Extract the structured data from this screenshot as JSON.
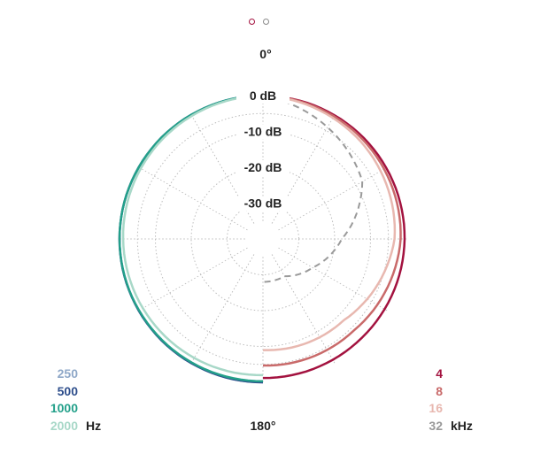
{
  "pager": {
    "pages": 2,
    "active": 1
  },
  "chart_data": {
    "type": "polar",
    "angle_labels": {
      "top": "0°",
      "bottom": "180°"
    },
    "radial_labels": [
      "0 dB",
      "-10 dB",
      "-20 dB",
      "-30 dB"
    ],
    "radial_range_db": [
      -40,
      0
    ],
    "grid": true,
    "left_half": {
      "unit": "Hz",
      "series": [
        {
          "name": "250",
          "color": "#8fa8c8",
          "values_db_at_0_90_180": [
            0,
            0,
            0
          ]
        },
        {
          "name": "500",
          "color": "#2f4f8c",
          "values_db_at_0_90_180": [
            0,
            0,
            0
          ]
        },
        {
          "name": "1000",
          "color": "#23a08a",
          "values_db_at_0_90_180": [
            0,
            0,
            -0.3
          ]
        },
        {
          "name": "2000",
          "color": "#a8d8c8",
          "values_db_at_0_90_180": [
            0,
            -1,
            -2
          ]
        }
      ]
    },
    "right_half": {
      "unit": "kHz",
      "series": [
        {
          "name": "4",
          "color": "#a3123f",
          "values_db": [
            [
              0,
              0
            ],
            [
              45,
              -0.2
            ],
            [
              90,
              -0.5
            ],
            [
              135,
              -1
            ],
            [
              180,
              -1.2
            ]
          ]
        },
        {
          "name": "8",
          "color": "#c96a6a",
          "values_db": [
            [
              0,
              0
            ],
            [
              45,
              -0.7
            ],
            [
              90,
              -1.6
            ],
            [
              135,
              -4
            ],
            [
              180,
              -4.7
            ]
          ]
        },
        {
          "name": "16",
          "color": "#e8b8b0",
          "values_db": [
            [
              0,
              0
            ],
            [
              45,
              -1.5
            ],
            [
              90,
              -3.3
            ],
            [
              135,
              -8
            ],
            [
              180,
              -9
            ]
          ]
        },
        {
          "name": "32",
          "color": "#9a9a9a",
          "dashed": true,
          "values_db": [
            [
              0,
              0
            ],
            [
              30,
              -4
            ],
            [
              60,
              -8
            ],
            [
              90,
              -18
            ],
            [
              120,
              -24
            ],
            [
              150,
              -28
            ],
            [
              180,
              -28
            ]
          ]
        }
      ]
    }
  },
  "legend": {
    "left": [
      {
        "value": "250",
        "color": "#8fa8c8"
      },
      {
        "value": "500",
        "color": "#2f4f8c"
      },
      {
        "value": "1000",
        "color": "#23a08a"
      },
      {
        "value": "2000",
        "color": "#a8d8c8",
        "unit": "Hz"
      }
    ],
    "right": [
      {
        "value": "4",
        "color": "#a3123f"
      },
      {
        "value": "8",
        "color": "#c96a6a"
      },
      {
        "value": "16",
        "color": "#e8b8b0"
      },
      {
        "value": "32",
        "color": "#9a9a9a",
        "unit": "kHz"
      }
    ]
  }
}
